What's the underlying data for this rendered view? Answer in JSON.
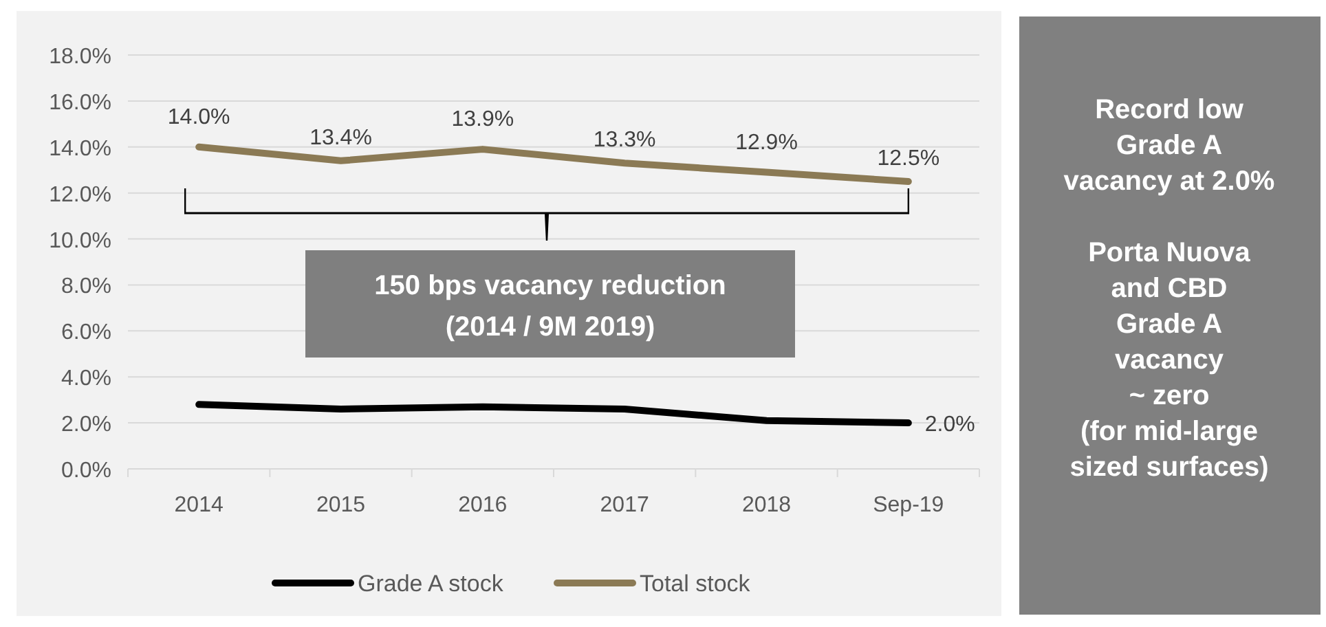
{
  "chart_data": {
    "type": "line",
    "categories": [
      "2014",
      "2015",
      "2016",
      "2017",
      "2018",
      "Sep-19"
    ],
    "series": [
      {
        "name": "Grade A stock",
        "color": "#000000",
        "values": [
          2.8,
          2.6,
          2.7,
          2.6,
          2.1,
          2.0
        ],
        "value_labels": [
          null,
          null,
          null,
          null,
          null,
          "2.0%"
        ]
      },
      {
        "name": "Total stock",
        "color": "#8b7a55",
        "values": [
          14.0,
          13.4,
          13.9,
          13.3,
          12.9,
          12.5
        ],
        "value_labels": [
          "14.0%",
          "13.4%",
          "13.9%",
          "13.3%",
          "12.9%",
          "12.5%"
        ]
      }
    ],
    "ylim": [
      0,
      18
    ],
    "yticks": [
      {
        "value": 0,
        "label": "0.0%"
      },
      {
        "value": 2,
        "label": "2.0%"
      },
      {
        "value": 4,
        "label": "4.0%"
      },
      {
        "value": 6,
        "label": "6.0%"
      },
      {
        "value": 8,
        "label": "8.0%"
      },
      {
        "value": 10,
        "label": "10.0%"
      },
      {
        "value": 12,
        "label": "12.0%"
      },
      {
        "value": 14,
        "label": "14.0%"
      },
      {
        "value": 16,
        "label": "16.0%"
      },
      {
        "value": 18,
        "label": "18.0%"
      }
    ],
    "grid": "y",
    "legend": "bottom",
    "marker": "none",
    "line_style": "solid",
    "annotations": [
      "150 bps vacancy reduction\n(2014 / 9M 2019)",
      "Record low\nGrade A\nvacancy at 2.0%\n\nPorta Nuova\nand CBD\nGrade A\nvacancy\n~ zero\n(for mid-large\nsized surfaces)"
    ]
  }
}
